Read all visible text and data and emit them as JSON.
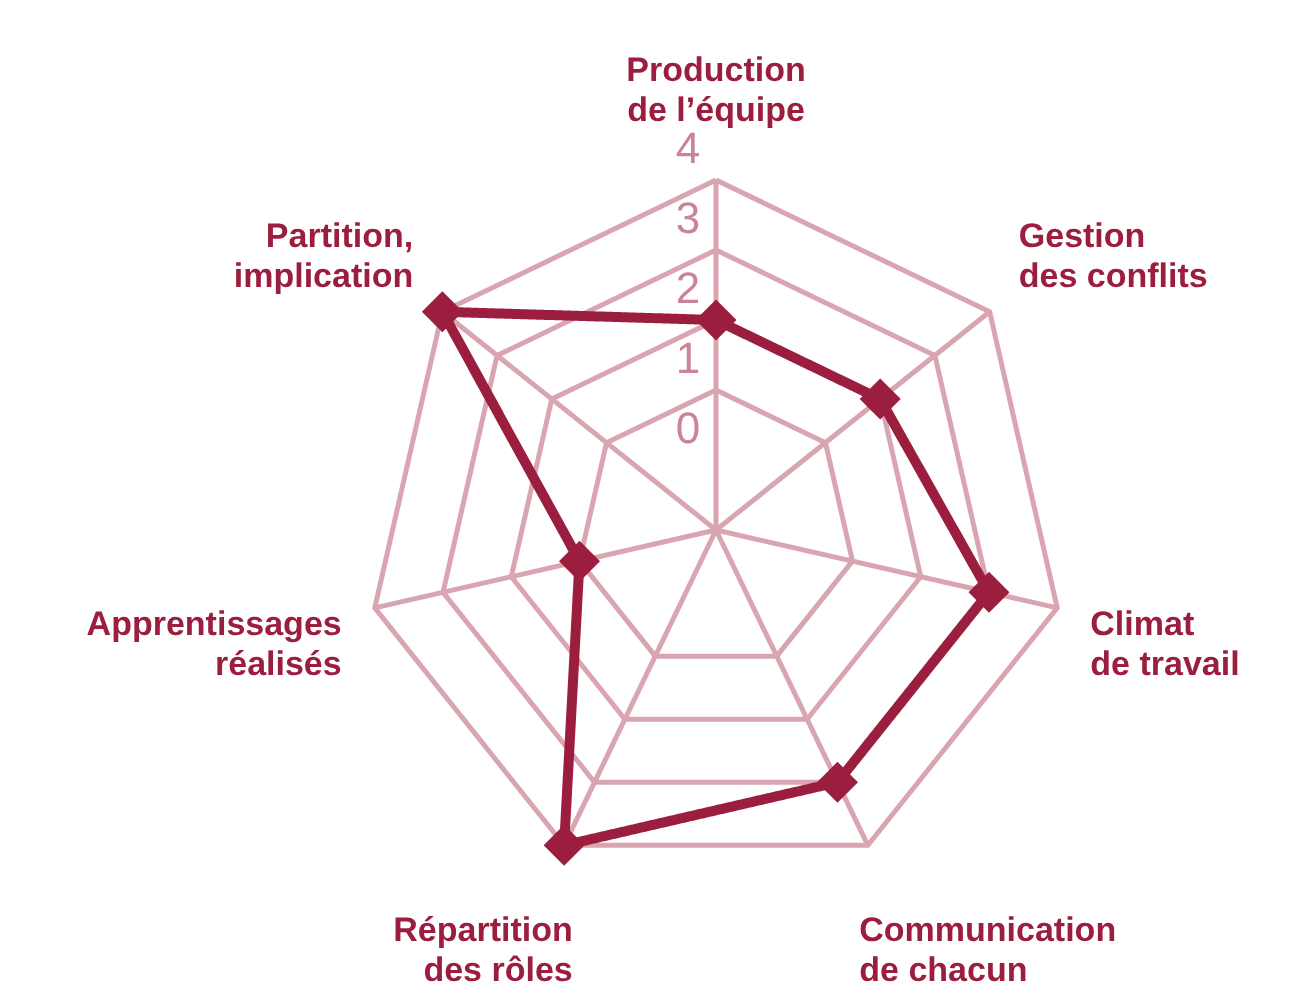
{
  "chart_data": {
    "type": "radar",
    "categories": [
      "Production\nde l’équipe",
      "Gestion\ndes conflits",
      "Climat\nde travail",
      "Communication\nde chacun",
      "Répartition\ndes rôles",
      "Apprentissages\nréalisés",
      "Partition,\nimplication"
    ],
    "series": [
      {
        "color": "#9b1e3e",
        "values": [
          2,
          2,
          3,
          3,
          4,
          1,
          4
        ]
      }
    ],
    "ylim": [
      -1,
      4
    ],
    "yticks": [
      0,
      1,
      2,
      3,
      4
    ],
    "grid": true,
    "marker": "diamond",
    "line_style": "solid"
  }
}
